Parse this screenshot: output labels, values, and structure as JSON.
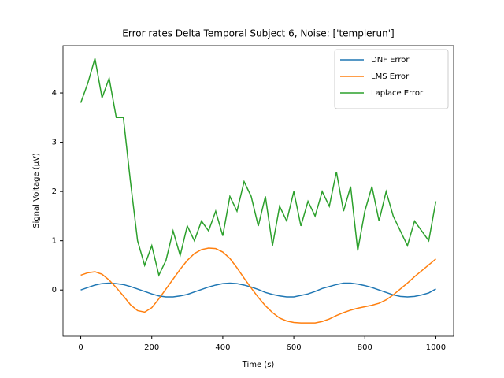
{
  "chart_data": {
    "type": "line",
    "title": "Error rates Delta Temporal Subject 6, Noise: ['templerun']",
    "x_label": "Time (s)",
    "y_label": "Signal Voltage (μV)",
    "x": [
      0,
      20,
      40,
      60,
      80,
      100,
      120,
      140,
      160,
      180,
      200,
      220,
      240,
      260,
      280,
      300,
      320,
      340,
      360,
      380,
      400,
      420,
      440,
      460,
      480,
      500,
      520,
      540,
      560,
      580,
      600,
      620,
      640,
      660,
      680,
      700,
      720,
      740,
      760,
      780,
      800,
      820,
      840,
      860,
      880,
      900,
      920,
      940,
      960,
      980,
      1000
    ],
    "series": [
      {
        "name": "DNF Error",
        "color": "#1f77b4",
        "values": [
          0,
          0.05,
          0.1,
          0.13,
          0.14,
          0.13,
          0.11,
          0.07,
          0.02,
          -0.03,
          -0.08,
          -0.12,
          -0.14,
          -0.14,
          -0.12,
          -0.09,
          -0.04,
          0.01,
          0.06,
          0.1,
          0.13,
          0.14,
          0.13,
          0.1,
          0.06,
          0.01,
          -0.05,
          -0.09,
          -0.12,
          -0.14,
          -0.14,
          -0.11,
          -0.08,
          -0.03,
          0.03,
          0.07,
          0.11,
          0.14,
          0.14,
          0.12,
          0.09,
          0.05,
          0,
          -0.05,
          -0.1,
          -0.13,
          -0.14,
          -0.13,
          -0.1,
          -0.06,
          0.02
        ]
      },
      {
        "name": "LMS Error",
        "color": "#ff7f0e",
        "values": [
          0.3,
          0.35,
          0.37,
          0.32,
          0.2,
          0.05,
          -0.12,
          -0.3,
          -0.42,
          -0.45,
          -0.36,
          -0.18,
          0.02,
          0.22,
          0.42,
          0.6,
          0.74,
          0.82,
          0.85,
          0.84,
          0.77,
          0.64,
          0.45,
          0.24,
          0.04,
          -0.15,
          -0.32,
          -0.46,
          -0.57,
          -0.63,
          -0.66,
          -0.67,
          -0.67,
          -0.67,
          -0.64,
          -0.59,
          -0.52,
          -0.46,
          -0.41,
          -0.37,
          -0.34,
          -0.31,
          -0.27,
          -0.2,
          -0.1,
          0.02,
          0.14,
          0.27,
          0.39,
          0.51,
          0.63
        ]
      },
      {
        "name": "Laplace Error",
        "color": "#2ca02c",
        "values": [
          3.8,
          4.2,
          4.7,
          3.9,
          4.3,
          3.5,
          3.5,
          2.2,
          1.0,
          0.5,
          0.9,
          0.3,
          0.6,
          1.2,
          0.7,
          1.3,
          1.0,
          1.4,
          1.2,
          1.6,
          1.1,
          1.9,
          1.6,
          2.2,
          1.9,
          1.3,
          1.9,
          0.9,
          1.7,
          1.4,
          2.0,
          1.3,
          1.8,
          1.5,
          2.0,
          1.7,
          2.4,
          1.6,
          2.1,
          0.8,
          1.6,
          2.1,
          1.4,
          2.0,
          1.5,
          1.2,
          0.9,
          1.4,
          1.2,
          1.0,
          1.8
        ]
      }
    ],
    "xlim": [
      -50,
      1050
    ],
    "xticks": [
      0,
      200,
      400,
      600,
      800,
      1000
    ],
    "ylim": [
      -0.94,
      4.96
    ],
    "yticks": [
      0,
      1,
      2,
      3,
      4
    ],
    "grid": false,
    "legend": "upper right"
  }
}
